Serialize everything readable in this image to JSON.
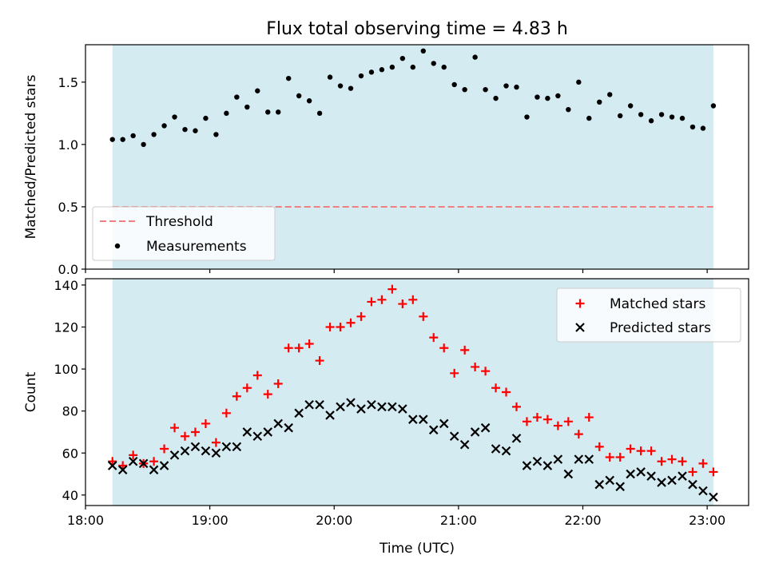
{
  "figure": {
    "title": "Flux total observing time = 4.83 h",
    "xlabel": "Time (UTC)"
  },
  "colors": {
    "observing_span": "#add8e6",
    "threshold": "#f08080",
    "measurements": "#000000",
    "matched": "#ff0000",
    "predicted": "#000000"
  },
  "chart_data": [
    {
      "type": "scatter",
      "ylabel": "Matched/Predicted stars",
      "xlim": [
        "18:00",
        "23:20"
      ],
      "ylim": [
        0,
        1.8
      ],
      "grid": false,
      "x_ticks": [
        "18:00",
        "19:00",
        "20:00",
        "21:00",
        "22:00",
        "23:00"
      ],
      "y_ticks": [
        "0.0",
        "0.5",
        "1.0",
        "1.5"
      ],
      "shaded_span": {
        "start": "18:13",
        "end": "23:03"
      },
      "threshold": {
        "y": 0.5,
        "label": "Threshold"
      },
      "legend_position": "lower-left",
      "series": [
        {
          "name": "Measurements",
          "marker": "dot",
          "x": [
            "18:13",
            "18:18",
            "18:23",
            "18:28",
            "18:33",
            "18:38",
            "18:43",
            "18:48",
            "18:53",
            "18:58",
            "19:03",
            "19:08",
            "19:13",
            "19:18",
            "19:23",
            "19:28",
            "19:33",
            "19:38",
            "19:43",
            "19:48",
            "19:53",
            "19:58",
            "20:03",
            "20:08",
            "20:13",
            "20:18",
            "20:23",
            "20:28",
            "20:33",
            "20:38",
            "20:43",
            "20:48",
            "20:53",
            "20:58",
            "21:03",
            "21:08",
            "21:13",
            "21:18",
            "21:23",
            "21:28",
            "21:33",
            "21:38",
            "21:43",
            "21:48",
            "21:53",
            "21:58",
            "22:03",
            "22:08",
            "22:13",
            "22:18",
            "22:23",
            "22:28",
            "22:33",
            "22:38",
            "22:43",
            "22:48",
            "22:53",
            "22:58",
            "23:03"
          ],
          "y": [
            1.04,
            1.04,
            1.07,
            1.0,
            1.08,
            1.15,
            1.22,
            1.12,
            1.11,
            1.21,
            1.08,
            1.25,
            1.38,
            1.3,
            1.43,
            1.26,
            1.26,
            1.53,
            1.39,
            1.35,
            1.25,
            1.54,
            1.47,
            1.45,
            1.55,
            1.58,
            1.6,
            1.62,
            1.69,
            1.62,
            1.75,
            1.65,
            1.62,
            1.48,
            1.44,
            1.7,
            1.44,
            1.37,
            1.47,
            1.46,
            1.22,
            1.38,
            1.37,
            1.39,
            1.28,
            1.5,
            1.21,
            1.34,
            1.4,
            1.23,
            1.31,
            1.24,
            1.19,
            1.24,
            1.22,
            1.21,
            1.14,
            1.13,
            1.31
          ]
        }
      ]
    },
    {
      "type": "scatter",
      "ylabel": "Count",
      "xlim": [
        "18:00",
        "23:20"
      ],
      "ylim": [
        35,
        143
      ],
      "grid": false,
      "x_ticks": [
        "18:00",
        "19:00",
        "20:00",
        "21:00",
        "22:00",
        "23:00"
      ],
      "y_ticks": [
        "40",
        "60",
        "80",
        "100",
        "120",
        "140"
      ],
      "shaded_span": {
        "start": "18:13",
        "end": "23:03"
      },
      "legend_position": "upper-right",
      "series": [
        {
          "name": "Matched stars",
          "marker": "plus",
          "x": [
            "18:13",
            "18:18",
            "18:23",
            "18:28",
            "18:33",
            "18:38",
            "18:43",
            "18:48",
            "18:53",
            "18:58",
            "19:03",
            "19:08",
            "19:13",
            "19:18",
            "19:23",
            "19:28",
            "19:33",
            "19:38",
            "19:43",
            "19:48",
            "19:53",
            "19:58",
            "20:03",
            "20:08",
            "20:13",
            "20:18",
            "20:23",
            "20:28",
            "20:33",
            "20:38",
            "20:43",
            "20:48",
            "20:53",
            "20:58",
            "21:03",
            "21:08",
            "21:13",
            "21:18",
            "21:23",
            "21:28",
            "21:33",
            "21:38",
            "21:43",
            "21:48",
            "21:53",
            "21:58",
            "22:03",
            "22:08",
            "22:13",
            "22:18",
            "22:23",
            "22:28",
            "22:33",
            "22:38",
            "22:43",
            "22:48",
            "22:53",
            "22:58",
            "23:03"
          ],
          "y": [
            56,
            54,
            59,
            55,
            56,
            62,
            72,
            68,
            70,
            74,
            65,
            79,
            87,
            91,
            97,
            88,
            93,
            110,
            110,
            112,
            104,
            120,
            120,
            122,
            125,
            132,
            133,
            138,
            131,
            133,
            125,
            115,
            110,
            98,
            109,
            101,
            99,
            91,
            89,
            82,
            75,
            77,
            76,
            73,
            75,
            69,
            77,
            63,
            58,
            58,
            62,
            61,
            61,
            56,
            57,
            56,
            51,
            55,
            51
          ]
        },
        {
          "name": "Predicted stars",
          "marker": "x",
          "x": [
            "18:13",
            "18:18",
            "18:23",
            "18:28",
            "18:33",
            "18:38",
            "18:43",
            "18:48",
            "18:53",
            "18:58",
            "19:03",
            "19:08",
            "19:13",
            "19:18",
            "19:23",
            "19:28",
            "19:33",
            "19:38",
            "19:43",
            "19:48",
            "19:53",
            "19:58",
            "20:03",
            "20:08",
            "20:13",
            "20:18",
            "20:23",
            "20:28",
            "20:33",
            "20:38",
            "20:43",
            "20:48",
            "20:53",
            "20:58",
            "21:03",
            "21:08",
            "21:13",
            "21:18",
            "21:23",
            "21:28",
            "21:33",
            "21:38",
            "21:43",
            "21:48",
            "21:53",
            "21:58",
            "22:03",
            "22:08",
            "22:13",
            "22:18",
            "22:23",
            "22:28",
            "22:33",
            "22:38",
            "22:43",
            "22:48",
            "22:53",
            "22:58",
            "23:03"
          ],
          "y": [
            54,
            52,
            56,
            55,
            52,
            54,
            59,
            61,
            63,
            61,
            60,
            63,
            63,
            70,
            68,
            70,
            74,
            72,
            79,
            83,
            83,
            78,
            82,
            84,
            81,
            83,
            82,
            82,
            81,
            76,
            76,
            71,
            74,
            68,
            64,
            70,
            72,
            62,
            61,
            67,
            54,
            56,
            54,
            57,
            50,
            57,
            57,
            45,
            47,
            44,
            50,
            51,
            49,
            46,
            47,
            49,
            45,
            42,
            39
          ]
        }
      ]
    }
  ]
}
